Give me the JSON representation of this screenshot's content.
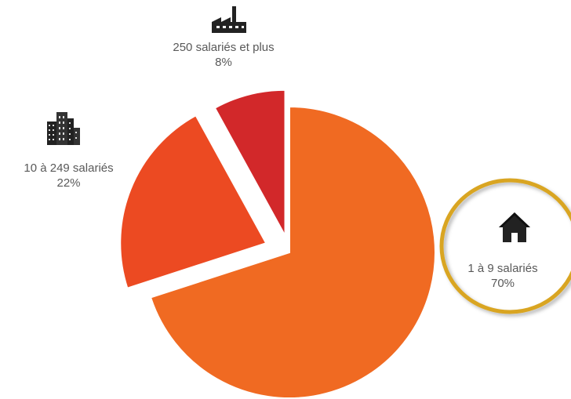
{
  "chart_data": {
    "type": "pie",
    "title": "",
    "slices": [
      {
        "label": "1 à 9 salariés",
        "value": 70,
        "value_label": "70%",
        "color": "#f06a22",
        "icon": "house-icon",
        "highlighted": true,
        "exploded": false
      },
      {
        "label": "10 à 249 salariés",
        "value": 22,
        "value_label": "22%",
        "color": "#ec4a22",
        "icon": "buildings-icon",
        "highlighted": false,
        "exploded": true
      },
      {
        "label": "250 salariés et plus",
        "value": 8,
        "value_label": "8%",
        "color": "#d2282a",
        "icon": "factory-icon",
        "highlighted": false,
        "exploded": true
      }
    ],
    "highlight_color": "#d9a520",
    "start_angle_deg": 0,
    "direction": "clockwise"
  }
}
